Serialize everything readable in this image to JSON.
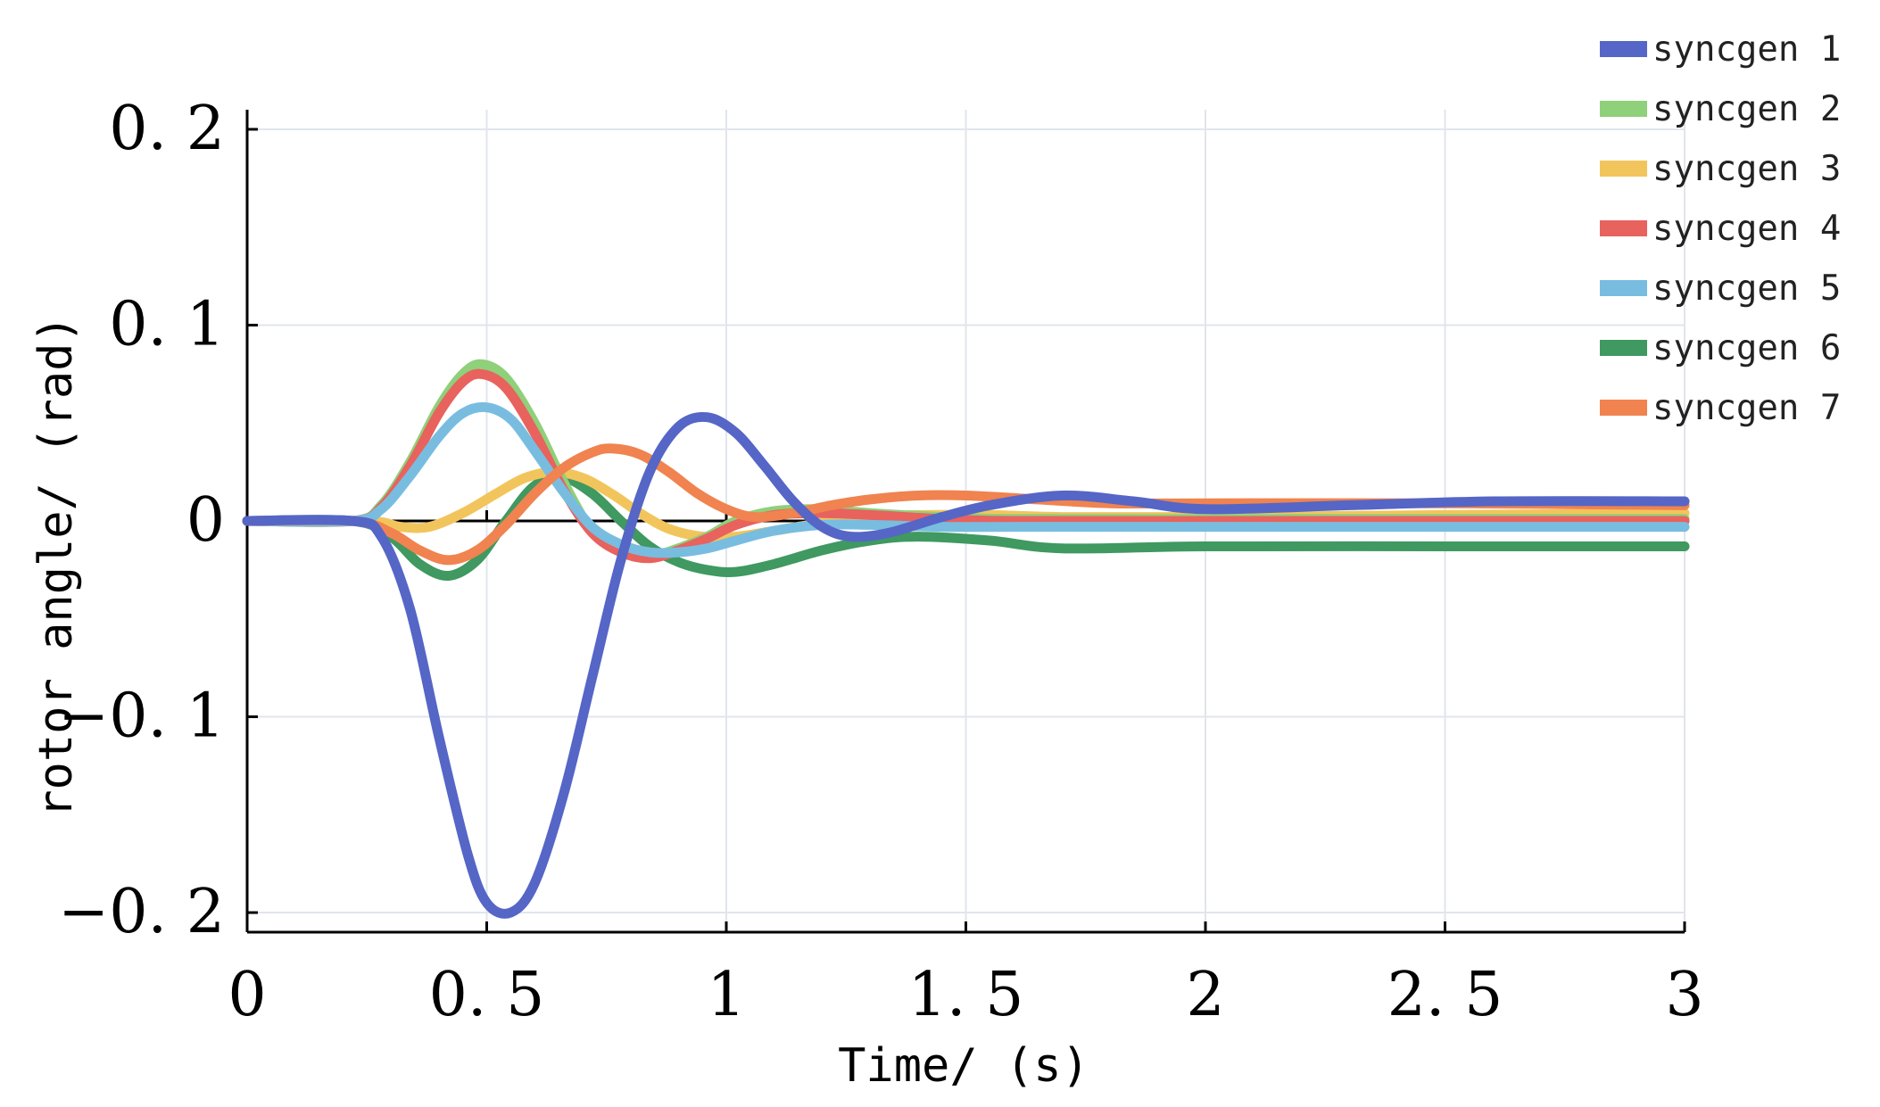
{
  "chart_data": {
    "type": "line",
    "title": "",
    "xlabel": "Time/ (s)",
    "ylabel": "rotor angle/ (rad)",
    "xlim": [
      0,
      3
    ],
    "ylim": [
      -0.21,
      0.21
    ],
    "xticks": [
      0,
      0.5,
      1,
      1.5,
      2,
      2.5,
      3
    ],
    "xtick_labels": [
      "0",
      "0. 5",
      "1",
      "1. 5",
      "2",
      "2. 5",
      "3"
    ],
    "yticks": [
      -0.2,
      -0.1,
      0,
      0.1,
      0.2
    ],
    "ytick_labels": [
      "−0. 2",
      "−0. 1",
      "0",
      "0. 1",
      "0. 2"
    ],
    "grid": true,
    "legend_position": "top-right",
    "series": [
      {
        "name": "syncgen 1",
        "color": "#5566c6",
        "x": [
          0,
          0.22,
          0.28,
          0.34,
          0.4,
          0.46,
          0.5,
          0.55,
          0.6,
          0.66,
          0.72,
          0.78,
          0.84,
          0.9,
          0.96,
          1.02,
          1.08,
          1.14,
          1.2,
          1.26,
          1.34,
          1.45,
          1.55,
          1.7,
          1.85,
          2.0,
          2.3,
          2.6,
          3.0
        ],
        "values": [
          0,
          0,
          -0.008,
          -0.045,
          -0.11,
          -0.17,
          -0.195,
          -0.2,
          -0.185,
          -0.14,
          -0.08,
          -0.02,
          0.025,
          0.048,
          0.053,
          0.045,
          0.028,
          0.01,
          -0.003,
          -0.008,
          -0.006,
          0.002,
          0.008,
          0.013,
          0.01,
          0.006,
          0.008,
          0.01,
          0.01
        ]
      },
      {
        "name": "syncgen 2",
        "color": "#8fd07a",
        "x": [
          0,
          0.22,
          0.28,
          0.34,
          0.4,
          0.45,
          0.49,
          0.54,
          0.6,
          0.66,
          0.72,
          0.78,
          0.84,
          0.9,
          0.96,
          1.02,
          1.1,
          1.2,
          1.3,
          1.45,
          1.6,
          2.0,
          2.5,
          3.0
        ],
        "values": [
          0,
          0,
          0.008,
          0.03,
          0.058,
          0.075,
          0.08,
          0.073,
          0.05,
          0.02,
          -0.005,
          -0.015,
          -0.018,
          -0.014,
          -0.008,
          0.0,
          0.005,
          0.006,
          0.004,
          0.002,
          0.001,
          0.001,
          0.001,
          0.001
        ]
      },
      {
        "name": "syncgen 3",
        "color": "#f2c55c",
        "x": [
          0,
          0.25,
          0.32,
          0.38,
          0.45,
          0.52,
          0.58,
          0.64,
          0.7,
          0.76,
          0.82,
          0.88,
          0.95,
          1.02,
          1.1,
          1.2,
          1.3,
          1.4,
          1.55,
          1.7,
          2.0,
          2.5,
          3.0
        ],
        "values": [
          0,
          0,
          -0.003,
          -0.003,
          0.004,
          0.014,
          0.022,
          0.025,
          0.022,
          0.014,
          0.004,
          -0.004,
          -0.008,
          -0.008,
          -0.005,
          -0.001,
          0.002,
          0.003,
          0.003,
          0.002,
          0.002,
          0.003,
          0.004
        ]
      },
      {
        "name": "syncgen 4",
        "color": "#e8625e",
        "x": [
          0,
          0.22,
          0.28,
          0.34,
          0.4,
          0.45,
          0.49,
          0.54,
          0.6,
          0.66,
          0.72,
          0.78,
          0.84,
          0.9,
          0.96,
          1.02,
          1.1,
          1.2,
          1.3,
          1.45,
          1.6,
          2.0,
          2.5,
          3.0
        ],
        "values": [
          0,
          0,
          0.007,
          0.028,
          0.055,
          0.071,
          0.075,
          0.068,
          0.045,
          0.016,
          -0.006,
          -0.016,
          -0.019,
          -0.015,
          -0.009,
          -0.002,
          0.003,
          0.004,
          0.003,
          0.001,
          0.0,
          0.0,
          0.0,
          0.0
        ]
      },
      {
        "name": "syncgen 5",
        "color": "#78bde0",
        "x": [
          0,
          0.22,
          0.28,
          0.34,
          0.4,
          0.45,
          0.5,
          0.55,
          0.6,
          0.66,
          0.72,
          0.78,
          0.84,
          0.9,
          0.96,
          1.02,
          1.1,
          1.2,
          1.3,
          1.45,
          1.6,
          2.0,
          2.5,
          3.0
        ],
        "values": [
          0,
          0,
          0.006,
          0.023,
          0.043,
          0.055,
          0.058,
          0.052,
          0.036,
          0.015,
          -0.003,
          -0.012,
          -0.016,
          -0.016,
          -0.014,
          -0.01,
          -0.005,
          -0.002,
          -0.002,
          -0.003,
          -0.003,
          -0.003,
          -0.003,
          -0.003
        ]
      },
      {
        "name": "syncgen 6",
        "color": "#3f9960",
        "x": [
          0,
          0.22,
          0.3,
          0.36,
          0.42,
          0.48,
          0.54,
          0.6,
          0.66,
          0.72,
          0.78,
          0.84,
          0.9,
          0.96,
          1.02,
          1.1,
          1.2,
          1.3,
          1.4,
          1.55,
          1.7,
          2.0,
          2.5,
          3.0
        ],
        "values": [
          0,
          0,
          -0.008,
          -0.022,
          -0.028,
          -0.02,
          0.0,
          0.018,
          0.022,
          0.014,
          0.0,
          -0.013,
          -0.021,
          -0.025,
          -0.026,
          -0.022,
          -0.015,
          -0.01,
          -0.008,
          -0.01,
          -0.014,
          -0.013,
          -0.013,
          -0.013
        ]
      },
      {
        "name": "syncgen 7",
        "color": "#f0834f",
        "x": [
          0,
          0.22,
          0.3,
          0.36,
          0.42,
          0.48,
          0.54,
          0.6,
          0.66,
          0.72,
          0.76,
          0.82,
          0.88,
          0.94,
          1.0,
          1.06,
          1.14,
          1.22,
          1.3,
          1.4,
          1.5,
          1.65,
          1.8,
          2.0,
          2.5,
          3.0
        ],
        "values": [
          0,
          0,
          -0.006,
          -0.015,
          -0.02,
          -0.015,
          -0.002,
          0.014,
          0.027,
          0.035,
          0.037,
          0.034,
          0.025,
          0.014,
          0.006,
          0.002,
          0.004,
          0.008,
          0.011,
          0.013,
          0.013,
          0.011,
          0.009,
          0.009,
          0.009,
          0.008
        ]
      }
    ]
  }
}
